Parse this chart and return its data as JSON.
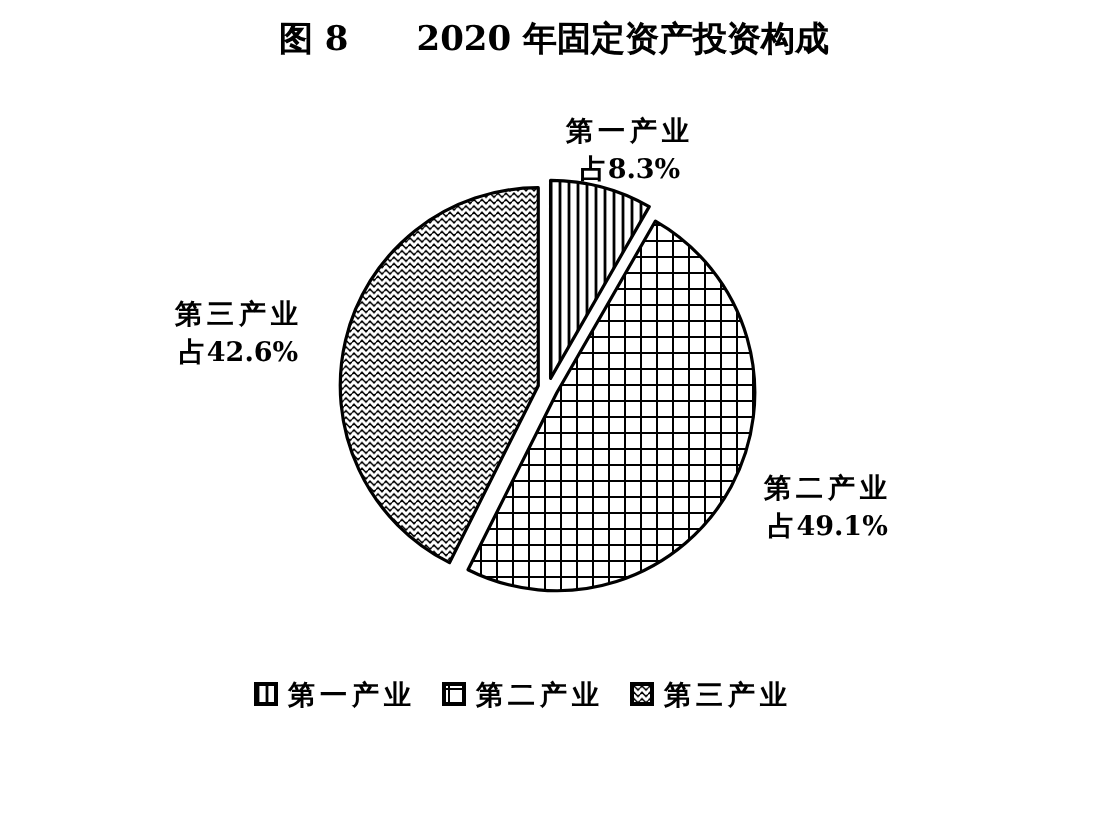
{
  "chart_data": {
    "type": "pie",
    "title": "图 8　　2020 年固定资产投资构成",
    "categories": [
      "第一产业",
      "第二产业",
      "第三产业"
    ],
    "values": [
      8.3,
      49.1,
      42.6
    ],
    "colors": [
      "#000000",
      "#000000",
      "#000000"
    ],
    "value_labels": [
      "占8.3%",
      "占49.1%",
      "占42.6%"
    ],
    "legend": "bottom"
  }
}
